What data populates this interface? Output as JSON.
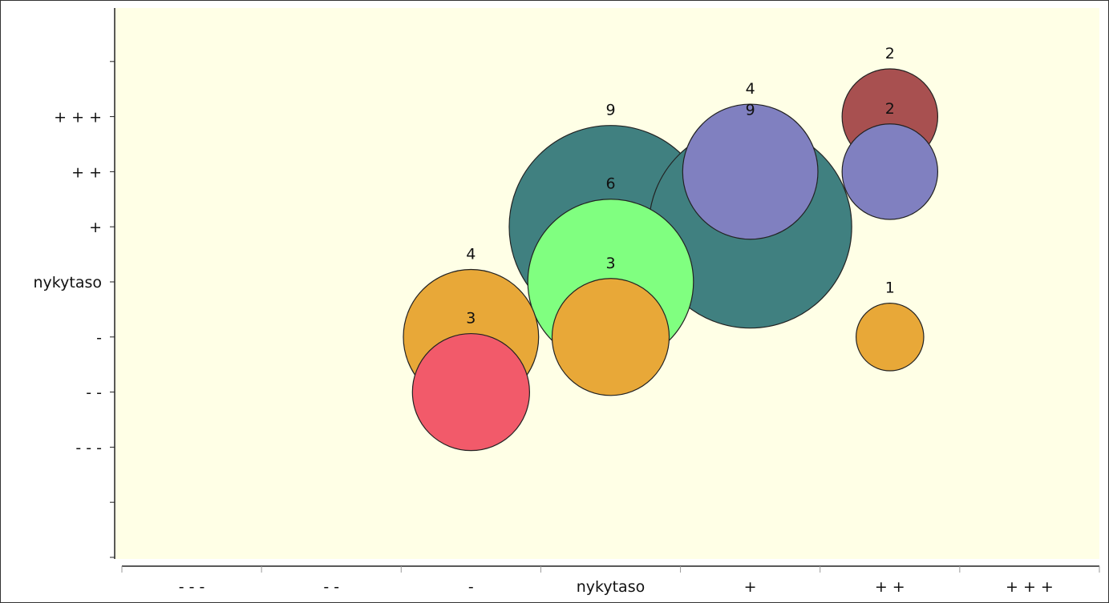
{
  "chart_data": {
    "type": "bubble",
    "x_categories": [
      "- - -",
      "- -",
      "-",
      "nykytaso",
      "+",
      "+ +",
      "+ + +"
    ],
    "y_categories": [
      "- - -",
      "- -",
      "-",
      "nykytaso",
      "+",
      "+ +",
      "+ + +"
    ],
    "plot_background": "#ffffe6",
    "grid": false,
    "bubbles": [
      {
        "x": "nykytaso",
        "y": "+",
        "value": 9,
        "color": "#408080"
      },
      {
        "x": "+",
        "y": "+",
        "value": 9,
        "color": "#408080"
      },
      {
        "x": "nykytaso",
        "y": "nykytaso",
        "value": 6,
        "color": "#80ff80"
      },
      {
        "x": "nykytaso",
        "y": "-",
        "value": 3,
        "color": "#e8a838"
      },
      {
        "x": "-",
        "y": "-",
        "value": 4,
        "color": "#e8a838"
      },
      {
        "x": "-",
        "y": "- -",
        "value": 3,
        "color": "#f25a6a"
      },
      {
        "x": "+",
        "y": "+ +",
        "value": 4,
        "color": "#8080c0"
      },
      {
        "x": "+ +",
        "y": "+ + +",
        "value": 2,
        "color": "#a85050"
      },
      {
        "x": "+ +",
        "y": "+ +",
        "value": 2,
        "color": "#8080c0"
      },
      {
        "x": "+ +",
        "y": "-",
        "value": 1,
        "color": "#e8a838"
      }
    ]
  }
}
